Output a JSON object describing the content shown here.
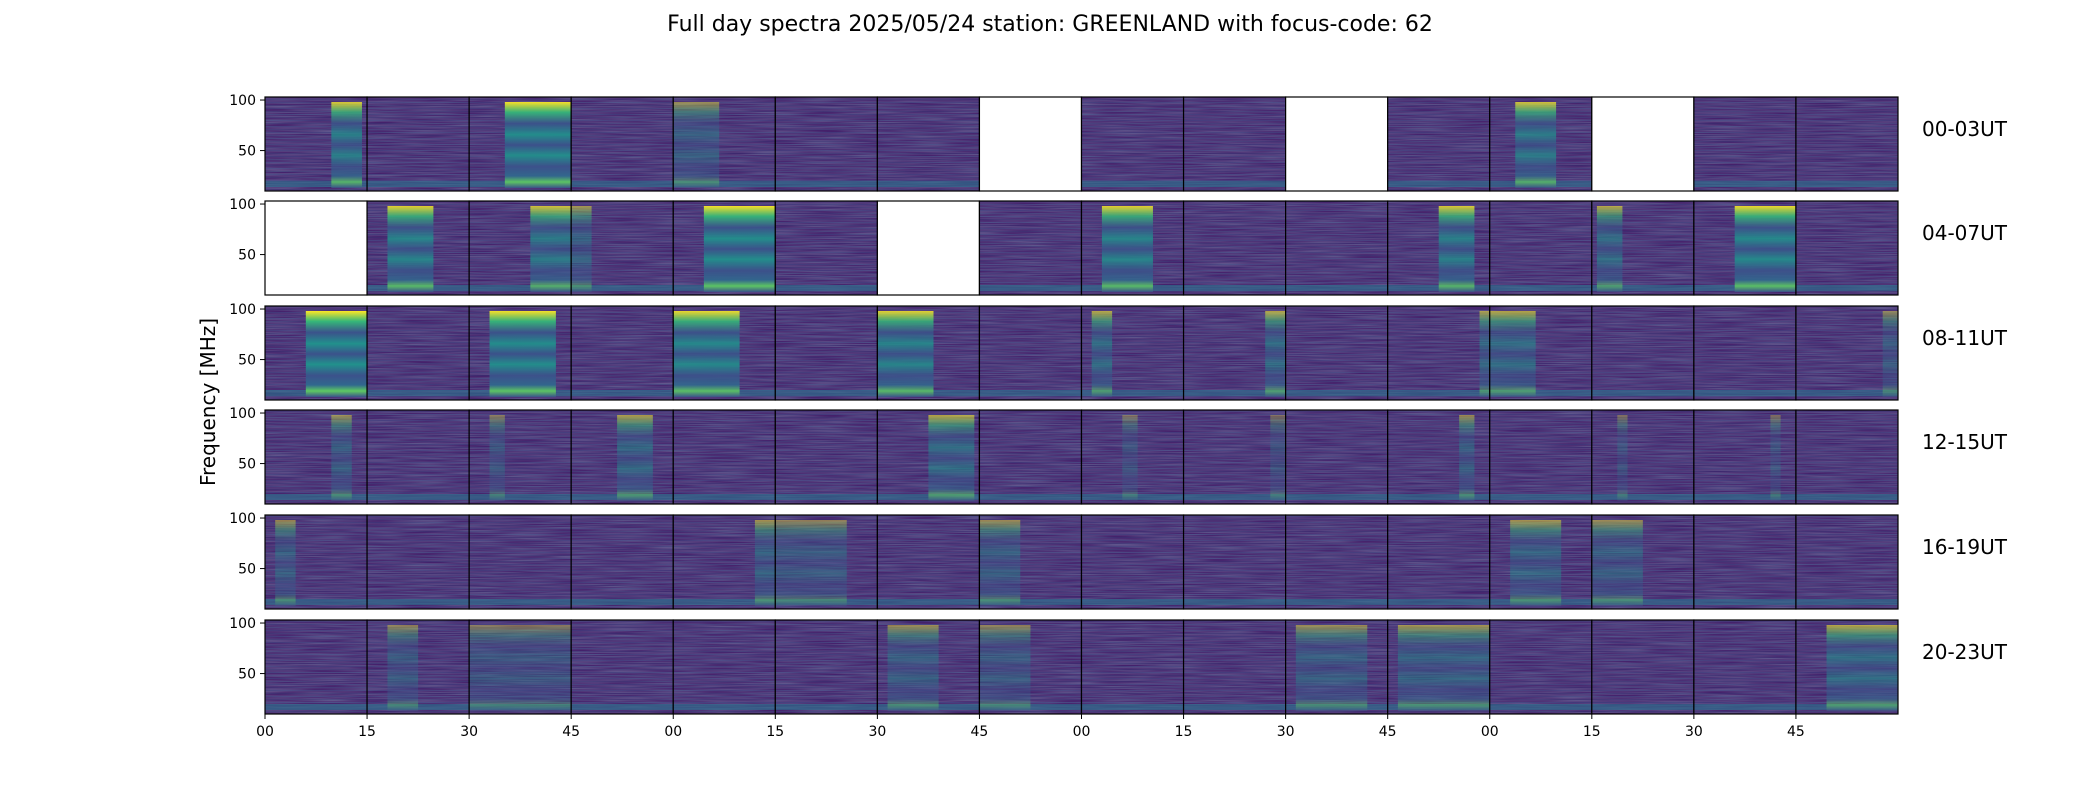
{
  "title": "Full day spectra 2025/05/24 station: GREENLAND with focus-code: 62",
  "chart_data": {
    "type": "heatmap",
    "title": "Full day spectra 2025/05/24 station: GREENLAND with focus-code: 62",
    "ylabel": "Frequency [MHz]",
    "ylim": [
      10,
      103
    ],
    "y_ticks": [
      "50",
      "100"
    ],
    "x_ticks": [
      "00",
      "15",
      "30",
      "45",
      "00",
      "15",
      "30",
      "45",
      "00",
      "15",
      "30",
      "45",
      "00",
      "15",
      "30",
      "45"
    ],
    "rows": [
      {
        "label": "00-03UT",
        "empty_panels": [
          7,
          10,
          13
        ],
        "bright_bands": [
          [
            0.65,
            0.95,
            0.8
          ],
          null,
          [
            0.35,
            1.0,
            0.95
          ],
          null,
          [
            0.0,
            0.45,
            0.45
          ],
          null,
          null,
          null,
          null,
          null,
          null,
          null,
          [
            0.25,
            0.65,
            0.75
          ],
          null,
          null,
          null
        ]
      },
      {
        "label": "04-07UT",
        "empty_panels": [
          0,
          6
        ],
        "bright_bands": [
          null,
          [
            0.2,
            0.65,
            0.85
          ],
          [
            0.6,
            1.0,
            0.75
          ],
          [
            0.0,
            0.2,
            0.5
          ],
          [
            0.3,
            1.0,
            0.95
          ],
          null,
          null,
          null,
          [
            0.2,
            0.7,
            0.85
          ],
          null,
          null,
          [
            0.5,
            0.85,
            0.8
          ],
          null,
          [
            0.05,
            0.3,
            0.6
          ],
          [
            0.4,
            1.0,
            0.9
          ],
          null
        ]
      },
      {
        "label": "08-11UT",
        "empty_panels": [],
        "bright_bands": [
          [
            0.4,
            1.0,
            1.0
          ],
          null,
          [
            0.2,
            0.85,
            0.95
          ],
          null,
          [
            0.0,
            0.65,
            0.9
          ],
          null,
          [
            0.0,
            0.55,
            0.85
          ],
          null,
          [
            0.1,
            0.3,
            0.6
          ],
          [
            0.8,
            1.0,
            0.6
          ],
          null,
          [
            0.9,
            1.0,
            0.55
          ],
          [
            0.0,
            0.45,
            0.6
          ],
          null,
          null,
          [
            0.85,
            1.0,
            0.4
          ]
        ]
      },
      {
        "label": "12-15UT",
        "empty_panels": [],
        "bright_bands": [
          [
            0.65,
            0.85,
            0.45
          ],
          null,
          [
            0.2,
            0.35,
            0.35
          ],
          [
            0.45,
            0.8,
            0.55
          ],
          null,
          null,
          [
            0.5,
            0.95,
            0.6
          ],
          null,
          [
            0.4,
            0.55,
            0.3
          ],
          [
            0.85,
            1.0,
            0.3
          ],
          null,
          [
            0.7,
            0.85,
            0.45
          ],
          null,
          [
            0.25,
            0.35,
            0.3
          ],
          [
            0.75,
            0.85,
            0.3
          ],
          null
        ]
      },
      {
        "label": "16-19UT",
        "empty_panels": [],
        "bright_bands": [
          [
            0.1,
            0.3,
            0.45
          ],
          null,
          null,
          null,
          [
            0.8,
            1.0,
            0.5
          ],
          [
            0.0,
            0.7,
            0.4
          ],
          null,
          [
            0.0,
            0.4,
            0.45
          ],
          null,
          null,
          null,
          null,
          [
            0.2,
            0.7,
            0.5
          ],
          [
            0.0,
            0.5,
            0.45
          ],
          null,
          null
        ]
      },
      {
        "label": "20-23UT",
        "empty_panels": [],
        "bright_bands": [
          null,
          [
            0.2,
            0.5,
            0.4
          ],
          [
            0.0,
            1.0,
            0.35
          ],
          null,
          null,
          null,
          [
            0.1,
            0.6,
            0.45
          ],
          [
            0.0,
            0.5,
            0.4
          ],
          null,
          null,
          [
            0.1,
            0.8,
            0.45
          ],
          [
            0.1,
            1.0,
            0.5
          ],
          null,
          null,
          null,
          [
            0.3,
            1.0,
            0.6
          ]
        ]
      }
    ]
  }
}
